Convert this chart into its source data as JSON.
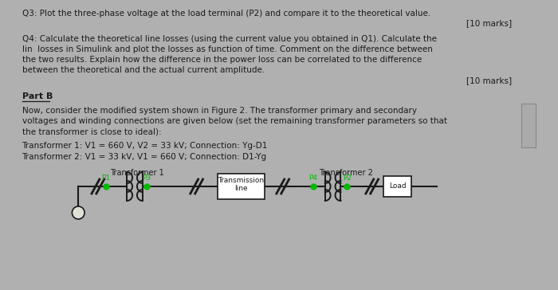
{
  "bg_color": "#b0b0b0",
  "paper_color": "#e0e0d8",
  "text_color": "#1a1a1a",
  "q3_text": "Q3: Plot the three-phase voltage at the load terminal (P2) and compare it to the theoretical value.",
  "marks1": "[10 marks]",
  "q4_line1": "Q4: Calculate the theoretical line losses (using the current value you obtained in Q1). Calculate the",
  "q4_line2": "lin  losses in Simulink and plot the losses as function of time. Comment on the difference between",
  "q4_line3": "the two results. Explain how the difference in the power loss can be correlated to the difference",
  "q4_line4": "between the theoretical and the actual current amplitude.",
  "marks2": "[10 marks]",
  "partB_label": "Part B",
  "partB_line1": "Now, consider the modified system shown in Figure 2. The transformer primary and secondary",
  "partB_line2": "voltages and winding connections are given below (set the remaining transformer parameters so that",
  "partB_line3": "the transformer is close to ideal):",
  "t1_text": "Transformer 1: V1 = 660 V, V2 = 33 kV; Connection: Yg-D1",
  "t2_text": "Transformer 2: V1 = 33 kV, V1 = 660 V; Connection: D1-Yg",
  "diagram_label1": "Transformer 1",
  "diagram_label2": "Transformer 2",
  "p1_label": "P1",
  "p2_label": "P2",
  "p3_label": "P3",
  "p4_label": "P4",
  "tline_label1": "Transmission",
  "tline_label2": "line",
  "load_label": "Load",
  "green_dot_color": "#00bb00",
  "wire_color": "#1a1a1a",
  "scroll_color": "#aaaaaa"
}
